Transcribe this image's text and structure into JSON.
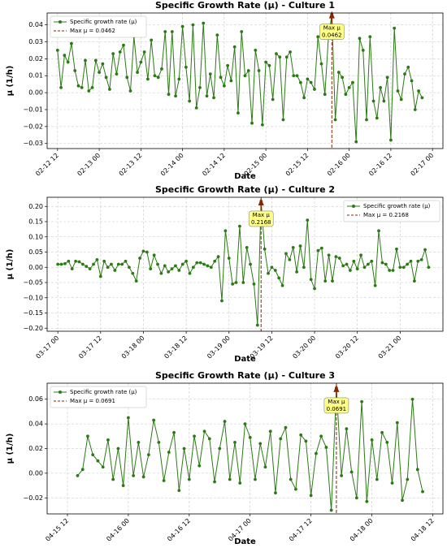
{
  "chart_data": [
    {
      "type": "line",
      "title": "Specific Growth Rate (μ) - Culture 1",
      "xlabel": "Date",
      "ylabel": "μ (1/h)",
      "x": [
        "02-12 12",
        "02-12 13",
        "02-12 14",
        "02-12 15",
        "02-12 16",
        "02-12 17",
        "02-12 18",
        "02-12 19",
        "02-12 20",
        "02-12 21",
        "02-12 22",
        "02-12 23",
        "02-13 00",
        "02-13 01",
        "02-13 02",
        "02-13 03",
        "02-13 04",
        "02-13 05",
        "02-13 06",
        "02-13 07",
        "02-13 08",
        "02-13 09",
        "02-13 10",
        "02-13 11",
        "02-13 12",
        "02-13 13",
        "02-13 14",
        "02-13 15",
        "02-13 16",
        "02-13 17",
        "02-13 18",
        "02-13 19",
        "02-13 20",
        "02-13 21",
        "02-13 22",
        "02-13 23",
        "02-14 00",
        "02-14 01",
        "02-14 02",
        "02-14 03",
        "02-14 04",
        "02-14 05",
        "02-14 06",
        "02-14 07",
        "02-14 08",
        "02-14 09",
        "02-14 10",
        "02-14 11",
        "02-14 12",
        "02-14 13",
        "02-14 14",
        "02-14 15",
        "02-14 16",
        "02-14 17",
        "02-14 18",
        "02-14 19",
        "02-14 20",
        "02-14 21",
        "02-14 22",
        "02-14 23",
        "02-15 00",
        "02-15 01",
        "02-15 02",
        "02-15 03",
        "02-15 04",
        "02-15 05",
        "02-15 06",
        "02-15 07",
        "02-15 08",
        "02-15 09",
        "02-15 10",
        "02-15 11",
        "02-15 12",
        "02-15 13",
        "02-15 14",
        "02-15 15",
        "02-15 16",
        "02-15 17",
        "02-15 18",
        "02-15 19",
        "02-15 20",
        "02-15 21",
        "02-15 22",
        "02-15 23",
        "02-16 00",
        "02-16 01",
        "02-16 02",
        "02-16 03",
        "02-16 04",
        "02-16 05",
        "02-16 06",
        "02-16 07",
        "02-16 08",
        "02-16 09",
        "02-16 10",
        "02-16 11",
        "02-16 12",
        "02-16 13",
        "02-16 14",
        "02-16 15",
        "02-16 16",
        "02-16 17",
        "02-16 18",
        "02-16 19",
        "02-16 20",
        "02-16 21"
      ],
      "series": [
        {
          "name": "Specific growth rate (μ)",
          "color": "#2b7a14",
          "values": [
            0.025,
            0.003,
            0.022,
            0.018,
            0.029,
            0.013,
            0.004,
            0.003,
            0.019,
            0.001,
            0.003,
            0.019,
            0.012,
            0.017,
            0.009,
            0.002,
            0.023,
            0.011,
            0.024,
            0.028,
            0.009,
            0.001,
            0.033,
            0.012,
            0.018,
            0.024,
            0.008,
            0.031,
            0.01,
            0.009,
            0.014,
            0.036,
            -0.001,
            0.036,
            -0.002,
            0.008,
            0.039,
            0.015,
            -0.005,
            0.04,
            -0.009,
            0.003,
            0.041,
            -0.002,
            0.011,
            -0.003,
            0.034,
            0.009,
            0.004,
            0.016,
            0.007,
            0.027,
            -0.012,
            0.036,
            0.01,
            0.013,
            -0.018,
            0.025,
            0.013,
            -0.019,
            0.018,
            0.016,
            -0.004,
            0.023,
            0.021,
            -0.016,
            0.021,
            0.024,
            0.01,
            0.01,
            0.006,
            -0.003,
            0.008,
            0.006,
            0.002,
            0.033,
            0.017,
            -0.001,
            0.032,
            0.0462,
            -0.016,
            0.012,
            0.009,
            -0.001,
            0.003,
            0.006,
            -0.029,
            0.032,
            0.025,
            -0.016,
            0.033,
            -0.005,
            -0.015,
            0.003,
            -0.005,
            0.009,
            -0.028,
            0.038,
            0.001,
            -0.004,
            0.011,
            0.015,
            0.007,
            -0.01,
            0.001,
            -0.003
          ]
        }
      ],
      "max": {
        "name": "Max μ = 0.0462",
        "x": "02-15 19",
        "value": 0.0462,
        "color": "#8b2500",
        "annotation": [
          "Max μ",
          "0.0462"
        ]
      },
      "xlim": [
        "02-12 09",
        "02-17 03"
      ],
      "xticks": [
        "02-12 12",
        "02-13 00",
        "02-13 12",
        "02-14 00",
        "02-14 12",
        "02-15 00",
        "02-15 12",
        "02-16 00",
        "02-16 12",
        "02-17 00"
      ],
      "ylim": [
        -0.033,
        0.047
      ],
      "yticks": [
        {
          "value": -0.03,
          "label": "−0.03"
        },
        {
          "value": -0.02,
          "label": "−0.02"
        },
        {
          "value": -0.01,
          "label": "−0.01"
        },
        {
          "value": 0,
          "label": "0.00"
        },
        0.01,
        0.02,
        0.03,
        0.04
      ],
      "grid": true,
      "legend": "upper left"
    },
    {
      "type": "line",
      "title": "Specific Growth Rate (μ) - Culture 2",
      "xlabel": "Date",
      "ylabel": "μ (1/h)",
      "x": [
        "03-17 00",
        "03-17 01",
        "03-17 02",
        "03-17 03",
        "03-17 04",
        "03-17 05",
        "03-17 06",
        "03-17 07",
        "03-17 08",
        "03-17 09",
        "03-17 10",
        "03-17 11",
        "03-17 12",
        "03-17 13",
        "03-17 14",
        "03-17 15",
        "03-17 16",
        "03-17 17",
        "03-17 18",
        "03-17 19",
        "03-17 20",
        "03-17 21",
        "03-17 22",
        "03-17 23",
        "03-18 00",
        "03-18 01",
        "03-18 02",
        "03-18 03",
        "03-18 04",
        "03-18 05",
        "03-18 06",
        "03-18 07",
        "03-18 08",
        "03-18 09",
        "03-18 10",
        "03-18 11",
        "03-18 12",
        "03-18 13",
        "03-18 14",
        "03-18 15",
        "03-18 16",
        "03-18 17",
        "03-18 18",
        "03-18 19",
        "03-18 20",
        "03-18 21",
        "03-18 22",
        "03-18 23",
        "03-19 00",
        "03-19 01",
        "03-19 02",
        "03-19 03",
        "03-19 04",
        "03-19 05",
        "03-19 06",
        "03-19 07",
        "03-19 08",
        "03-19 09",
        "03-19 10",
        "03-19 11",
        "03-19 12",
        "03-19 13",
        "03-19 14",
        "03-19 15",
        "03-19 16",
        "03-19 17",
        "03-19 18",
        "03-19 19",
        "03-19 20",
        "03-19 21",
        "03-19 22",
        "03-19 23",
        "03-20 00",
        "03-20 01",
        "03-20 02",
        "03-20 03",
        "03-20 04",
        "03-20 05",
        "03-20 06",
        "03-20 07",
        "03-20 08",
        "03-20 09",
        "03-20 10",
        "03-20 11",
        "03-20 12",
        "03-20 13",
        "03-20 14",
        "03-20 15",
        "03-20 16",
        "03-20 17",
        "03-20 18",
        "03-20 19",
        "03-20 20",
        "03-20 21",
        "03-20 22",
        "03-20 23",
        "03-21 00",
        "03-21 01",
        "03-21 02",
        "03-21 03",
        "03-21 04",
        "03-21 05",
        "03-21 06",
        "03-21 07",
        "03-21 08"
      ],
      "series": [
        {
          "name": "Specific growth rate (μ)",
          "color": "#2b7a14",
          "values": [
            0.01,
            0.01,
            0.012,
            0.02,
            -0.005,
            0.02,
            0.018,
            0.01,
            0.003,
            -0.005,
            0.01,
            0.025,
            -0.03,
            0.02,
            0.0,
            0.01,
            -0.01,
            0.01,
            0.01,
            0.02,
            0.0,
            -0.02,
            -0.045,
            0.03,
            0.053,
            0.05,
            -0.005,
            0.04,
            0.01,
            -0.02,
            0.005,
            -0.015,
            -0.005,
            0.005,
            -0.01,
            0.01,
            0.02,
            -0.02,
            0.0,
            0.015,
            0.015,
            0.01,
            0.005,
            0.0,
            0.02,
            0.035,
            -0.11,
            0.12,
            0.03,
            -0.055,
            -0.05,
            0.135,
            -0.05,
            0.065,
            0.01,
            -0.055,
            -0.19,
            0.2168,
            0.06,
            -0.02,
            0.0,
            -0.01,
            -0.035,
            -0.06,
            0.045,
            0.025,
            0.065,
            -0.015,
            0.07,
            0.0,
            0.155,
            -0.04,
            -0.07,
            0.055,
            0.063,
            -0.045,
            0.04,
            -0.045,
            0.035,
            0.03,
            0.005,
            0.01,
            -0.01,
            0.02,
            -0.005,
            0.04,
            0.0,
            0.01,
            0.02,
            -0.06,
            0.12,
            0.015,
            0.01,
            -0.01,
            -0.01,
            0.06,
            0.0,
            0.0,
            0.01,
            0.02,
            -0.045,
            0.02,
            0.025,
            0.058,
            0.0
          ]
        }
      ],
      "max": {
        "name": "Max μ = 0.2168",
        "x": "03-19 09",
        "value": 0.2168,
        "color": "#8b2500",
        "annotation": [
          "Max μ",
          "0.2168"
        ]
      },
      "xlim": [
        "03-16 21",
        "03-21 12"
      ],
      "xticks": [
        "03-17 00",
        "03-17 12",
        "03-18 00",
        "03-18 12",
        "03-19 00",
        "03-19 12",
        "03-20 00",
        "03-20 12",
        "03-21 00"
      ],
      "ylim": [
        -0.21,
        0.23
      ],
      "yticks": [
        {
          "value": -0.2,
          "label": "−0.20"
        },
        {
          "value": -0.15,
          "label": "−0.15"
        },
        {
          "value": -0.1,
          "label": "−0.10"
        },
        {
          "value": -0.05,
          "label": "−0.05"
        },
        {
          "value": 0,
          "label": "0.00"
        },
        0.05,
        {
          "value": 0.1,
          "label": "0.10"
        },
        0.15,
        {
          "value": 0.2,
          "label": "0.20"
        }
      ],
      "grid": true,
      "legend": "upper right"
    },
    {
      "type": "line",
      "title": "Specific Growth Rate (μ) - Culture 3",
      "xlabel": "Date",
      "ylabel": "μ (1/h)",
      "x": [
        "04-15 14",
        "04-15 15",
        "04-15 16",
        "04-15 17",
        "04-15 18",
        "04-15 19",
        "04-15 20",
        "04-15 21",
        "04-15 22",
        "04-15 23",
        "04-16 00",
        "04-16 01",
        "04-16 02",
        "04-16 03",
        "04-16 04",
        "04-16 05",
        "04-16 06",
        "04-16 07",
        "04-16 08",
        "04-16 09",
        "04-16 10",
        "04-16 11",
        "04-16 12",
        "04-16 13",
        "04-16 14",
        "04-16 15",
        "04-16 16",
        "04-16 17",
        "04-16 18",
        "04-16 19",
        "04-16 20",
        "04-16 21",
        "04-16 22",
        "04-16 23",
        "04-17 00",
        "04-17 01",
        "04-17 02",
        "04-17 03",
        "04-17 04",
        "04-17 05",
        "04-17 06",
        "04-17 07",
        "04-17 08",
        "04-17 09",
        "04-17 10",
        "04-17 11",
        "04-17 12",
        "04-17 13",
        "04-17 14",
        "04-17 15",
        "04-17 16",
        "04-17 17",
        "04-17 18",
        "04-17 19",
        "04-17 20",
        "04-17 21",
        "04-17 22",
        "04-17 23",
        "04-18 00",
        "04-18 01",
        "04-18 02",
        "04-18 03",
        "04-18 04",
        "04-18 05",
        "04-18 06",
        "04-18 07",
        "04-18 08",
        "04-18 09",
        "04-18 10"
      ],
      "series": [
        {
          "name": "Specific growth rate (μ)",
          "color": "#2b7a14",
          "values": [
            -0.002,
            0.003,
            0.03,
            0.015,
            0.01,
            0.005,
            0.027,
            -0.005,
            0.02,
            -0.01,
            0.045,
            -0.002,
            0.025,
            -0.003,
            0.015,
            0.043,
            0.025,
            -0.006,
            0.017,
            0.033,
            -0.014,
            0.02,
            -0.005,
            0.03,
            0.006,
            0.034,
            0.028,
            -0.007,
            0.02,
            0.042,
            -0.005,
            0.025,
            -0.008,
            0.04,
            0.029,
            -0.005,
            0.024,
            0.005,
            0.034,
            -0.016,
            0.028,
            0.037,
            -0.005,
            -0.013,
            0.031,
            0.026,
            -0.018,
            0.016,
            0.03,
            0.021,
            -0.03,
            0.0691,
            -0.002,
            0.036,
            0.001,
            -0.02,
            0.058,
            -0.023,
            0.027,
            -0.005,
            0.033,
            0.025,
            -0.008,
            0.041,
            -0.022,
            -0.005,
            0.06,
            0.003,
            -0.015
          ]
        }
      ],
      "max": {
        "name": "Max μ = 0.0691",
        "x": "04-17 17",
        "value": 0.0691,
        "color": "#8b2500",
        "annotation": [
          "Max μ",
          "0.0691"
        ]
      },
      "xlim": [
        "04-15 08",
        "04-18 14"
      ],
      "xticks": [
        "04-15 12",
        "04-16 00",
        "04-16 12",
        "04-17 00",
        "04-17 12",
        "04-18 00",
        "04-18 12"
      ],
      "ylim": [
        -0.033,
        0.073
      ],
      "yticks": [
        {
          "value": -0.02,
          "label": "−0.02"
        },
        {
          "value": 0,
          "label": "0.00"
        },
        0.02,
        0.04,
        0.06
      ],
      "grid": true,
      "legend": "upper left"
    }
  ]
}
